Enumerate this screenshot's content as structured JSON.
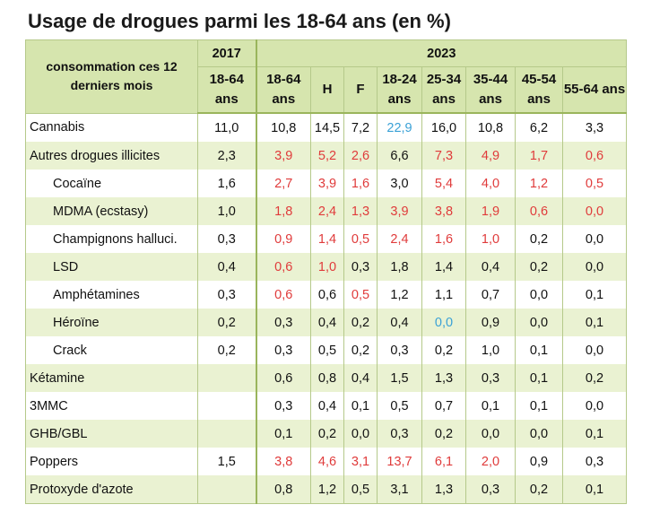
{
  "title": "Usage de drogues parmi les 18-64 ans (en %)",
  "header": {
    "corner_label": "consommation ces 12 derniers mois",
    "year_2017": "2017",
    "year_2023": "2023",
    "subheaders": [
      "18-64 ans",
      "18-64 ans",
      "H",
      "F",
      "18-24 ans",
      "25-34 ans",
      "35-44 ans",
      "45-54 ans",
      "55-64 ans"
    ]
  },
  "colors": {
    "red": "#e03b3b",
    "blue": "#3aa1d6",
    "black": "#111111",
    "header_bg": "#d6e5ae",
    "row_shade": "#eaf2d2"
  },
  "rows": [
    {
      "label": "Cannabis",
      "indent": false,
      "shade": false,
      "v2017": "11,0",
      "vals": [
        "10,8",
        "14,5",
        "7,2",
        "22,9",
        "16,0",
        "10,8",
        "6,2",
        "3,3"
      ],
      "colors": [
        "k",
        "k",
        "k",
        "b",
        "k",
        "k",
        "k",
        "k"
      ]
    },
    {
      "label": "Autres drogues illicites",
      "indent": false,
      "shade": true,
      "v2017": "2,3",
      "vals": [
        "3,9",
        "5,2",
        "2,6",
        "6,6",
        "7,3",
        "4,9",
        "1,7",
        "0,6"
      ],
      "colors": [
        "r",
        "r",
        "r",
        "k",
        "r",
        "r",
        "r",
        "r"
      ]
    },
    {
      "label": "Cocaïne",
      "indent": true,
      "shade": false,
      "v2017": "1,6",
      "vals": [
        "2,7",
        "3,9",
        "1,6",
        "3,0",
        "5,4",
        "4,0",
        "1,2",
        "0,5"
      ],
      "colors": [
        "r",
        "r",
        "r",
        "k",
        "r",
        "r",
        "r",
        "r"
      ]
    },
    {
      "label": "MDMA (ecstasy)",
      "indent": true,
      "shade": true,
      "v2017": "1,0",
      "vals": [
        "1,8",
        "2,4",
        "1,3",
        "3,9",
        "3,8",
        "1,9",
        "0,6",
        "0,0"
      ],
      "colors": [
        "r",
        "r",
        "r",
        "r",
        "r",
        "r",
        "r",
        "r"
      ]
    },
    {
      "label": "Champignons halluci.",
      "indent": true,
      "shade": false,
      "v2017": "0,3",
      "vals": [
        "0,9",
        "1,4",
        "0,5",
        "2,4",
        "1,6",
        "1,0",
        "0,2",
        "0,0"
      ],
      "colors": [
        "r",
        "r",
        "r",
        "r",
        "r",
        "r",
        "k",
        "k"
      ]
    },
    {
      "label": "LSD",
      "indent": true,
      "shade": true,
      "v2017": "0,4",
      "vals": [
        "0,6",
        "1,0",
        "0,3",
        "1,8",
        "1,4",
        "0,4",
        "0,2",
        "0,0"
      ],
      "colors": [
        "r",
        "r",
        "k",
        "k",
        "k",
        "k",
        "k",
        "k"
      ]
    },
    {
      "label": "Amphétamines",
      "indent": true,
      "shade": false,
      "v2017": "0,3",
      "vals": [
        "0,6",
        "0,6",
        "0,5",
        "1,2",
        "1,1",
        "0,7",
        "0,0",
        "0,1"
      ],
      "colors": [
        "r",
        "k",
        "r",
        "k",
        "k",
        "k",
        "k",
        "k"
      ]
    },
    {
      "label": "Héroïne",
      "indent": true,
      "shade": true,
      "v2017": "0,2",
      "vals": [
        "0,3",
        "0,4",
        "0,2",
        "0,4",
        "0,0",
        "0,9",
        "0,0",
        "0,1"
      ],
      "colors": [
        "k",
        "k",
        "k",
        "k",
        "b",
        "k",
        "k",
        "k"
      ]
    },
    {
      "label": "Crack",
      "indent": true,
      "shade": false,
      "v2017": "0,2",
      "vals": [
        "0,3",
        "0,5",
        "0,2",
        "0,3",
        "0,2",
        "1,0",
        "0,1",
        "0,0"
      ],
      "colors": [
        "k",
        "k",
        "k",
        "k",
        "k",
        "k",
        "k",
        "k"
      ]
    },
    {
      "label": "Kétamine",
      "indent": false,
      "shade": true,
      "v2017": "",
      "vals": [
        "0,6",
        "0,8",
        "0,4",
        "1,5",
        "1,3",
        "0,3",
        "0,1",
        "0,2"
      ],
      "colors": [
        "k",
        "k",
        "k",
        "k",
        "k",
        "k",
        "k",
        "k"
      ]
    },
    {
      "label": "3MMC",
      "indent": false,
      "shade": false,
      "v2017": "",
      "vals": [
        "0,3",
        "0,4",
        "0,1",
        "0,5",
        "0,7",
        "0,1",
        "0,1",
        "0,0"
      ],
      "colors": [
        "k",
        "k",
        "k",
        "k",
        "k",
        "k",
        "k",
        "k"
      ]
    },
    {
      "label": "GHB/GBL",
      "indent": false,
      "shade": true,
      "v2017": "",
      "vals": [
        "0,1",
        "0,2",
        "0,0",
        "0,3",
        "0,2",
        "0,0",
        "0,0",
        "0,1"
      ],
      "colors": [
        "k",
        "k",
        "k",
        "k",
        "k",
        "k",
        "k",
        "k"
      ]
    },
    {
      "label": "Poppers",
      "indent": false,
      "shade": false,
      "v2017": "1,5",
      "vals": [
        "3,8",
        "4,6",
        "3,1",
        "13,7",
        "6,1",
        "2,0",
        "0,9",
        "0,3"
      ],
      "colors": [
        "r",
        "r",
        "r",
        "r",
        "r",
        "r",
        "k",
        "k"
      ]
    },
    {
      "label": "Protoxyde d'azote",
      "indent": false,
      "shade": true,
      "v2017": "",
      "vals": [
        "0,8",
        "1,2",
        "0,5",
        "3,1",
        "1,3",
        "0,3",
        "0,2",
        "0,1"
      ],
      "colors": [
        "k",
        "k",
        "k",
        "k",
        "k",
        "k",
        "k",
        "k"
      ]
    }
  ]
}
